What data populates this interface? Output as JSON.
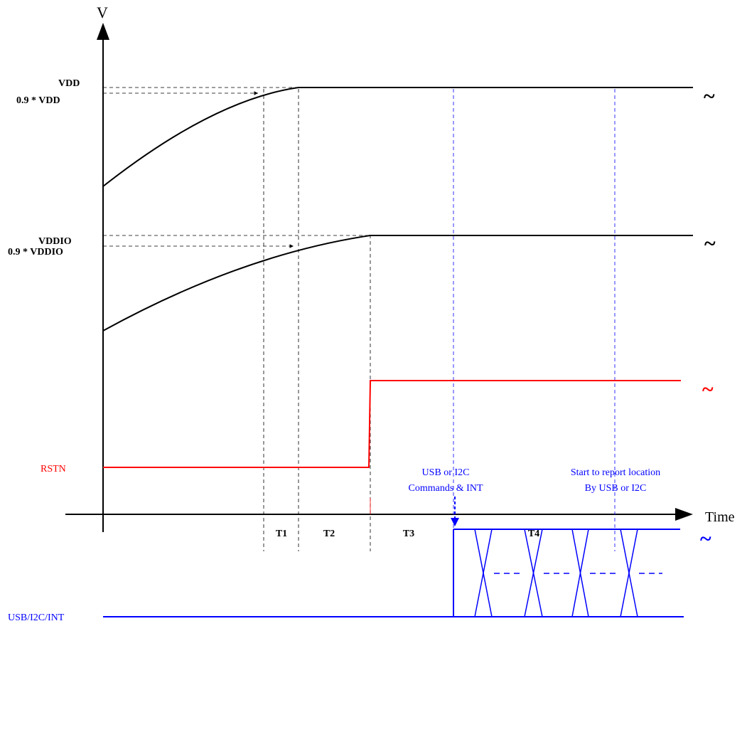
{
  "axes": {
    "y_label": "V",
    "x_label": "Time"
  },
  "levels": {
    "vdd": "VDD",
    "vdd_90": "0.9 * VDD",
    "vddio": "VDDIO",
    "vddio_90": "0.9 * VDDIO"
  },
  "signals": {
    "rstn": "RSTN",
    "bus": "USB/I2C/INT"
  },
  "annotations": {
    "commands_line1": "USB  or I2C",
    "commands_line2": "Commands & INT",
    "report_line1": "Start to report location",
    "report_line2": "By USB or I2C"
  },
  "intervals": [
    "T1",
    "T2",
    "T3",
    "T4"
  ],
  "continuation_mark": "~",
  "colors": {
    "black": "#000000",
    "red": "#ff0000",
    "blue": "#0000ff"
  }
}
